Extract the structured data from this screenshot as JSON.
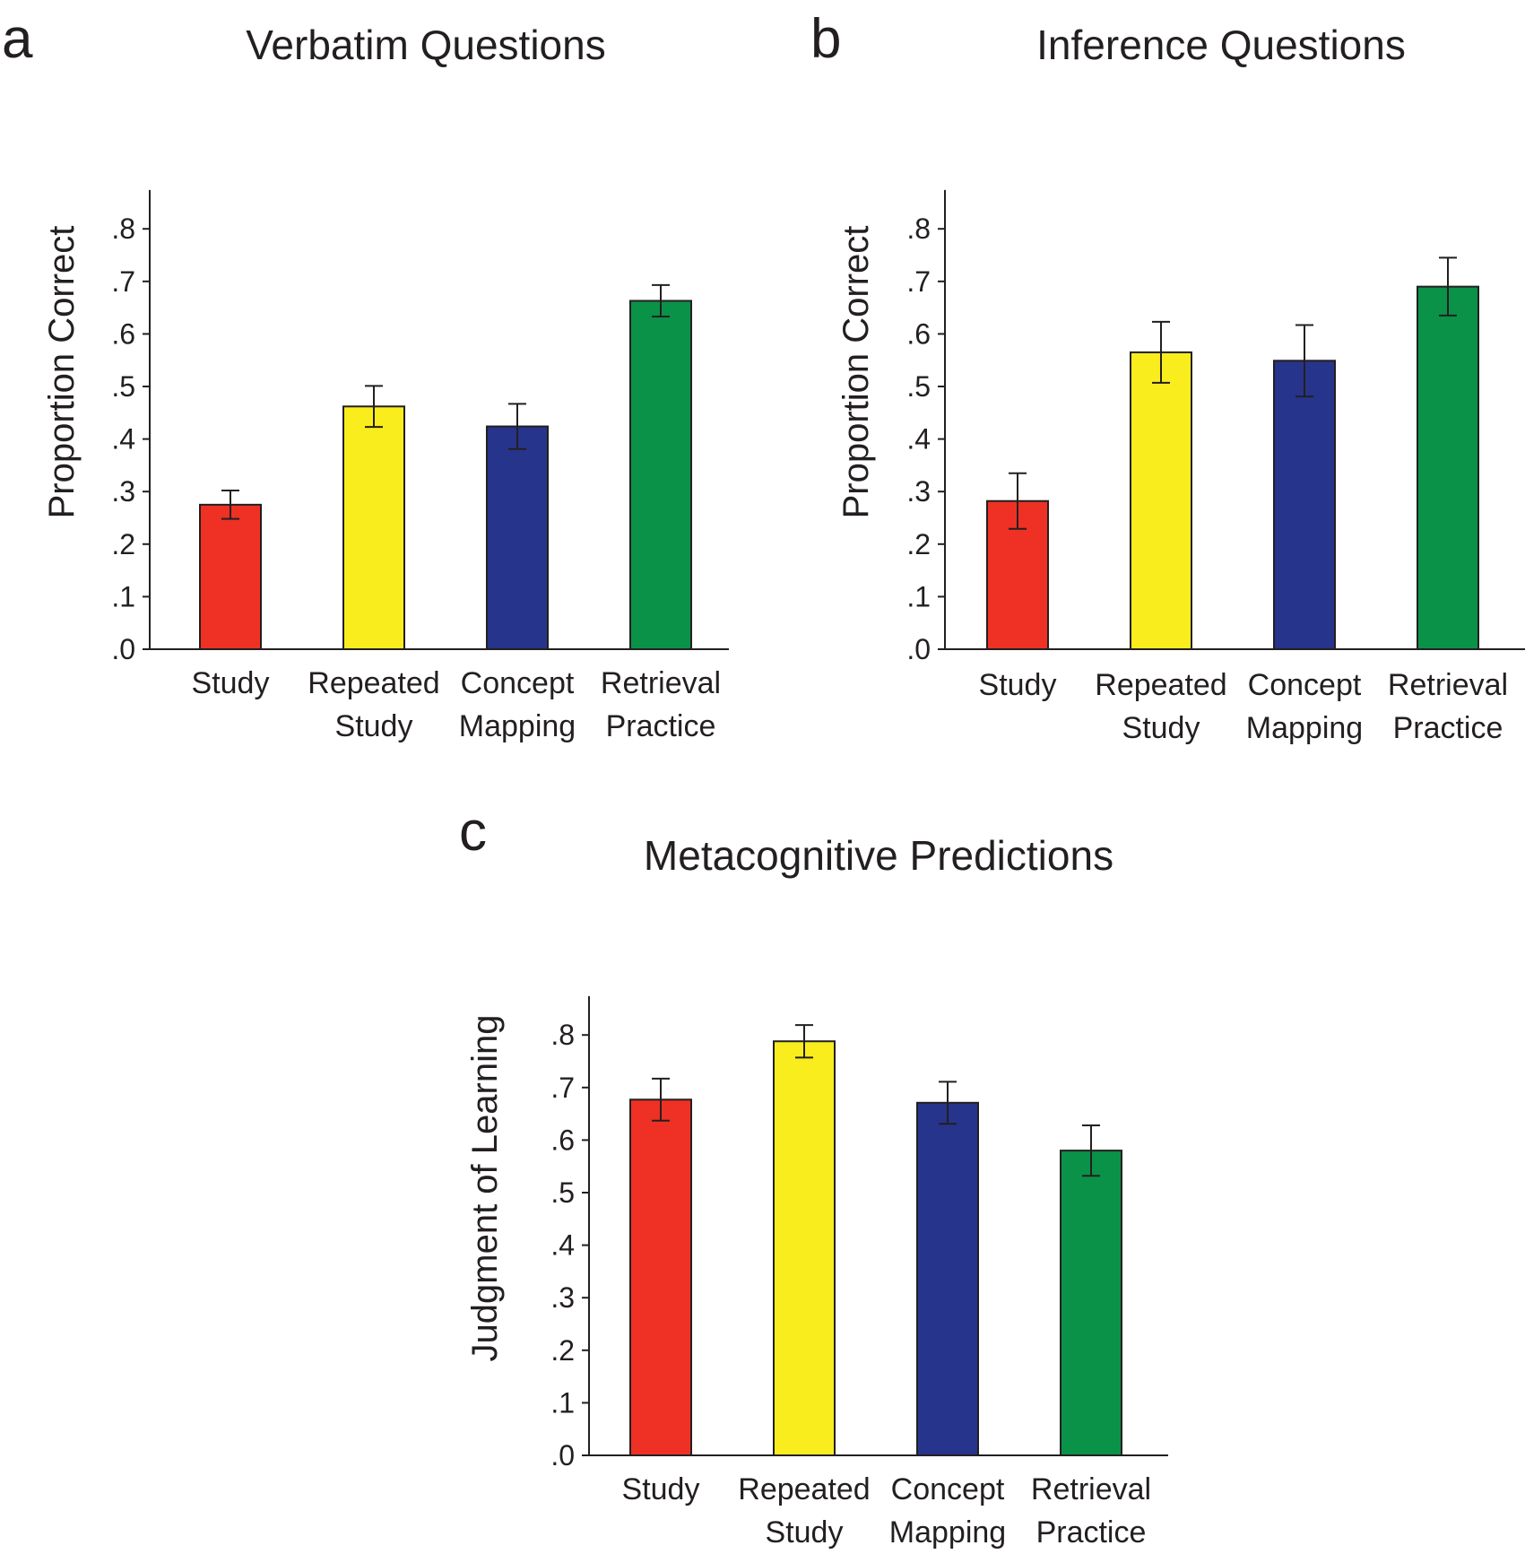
{
  "chart_data": [
    {
      "panel": "a",
      "type": "bar",
      "title": "Verbatim Questions",
      "ylabel": "Proportion Correct",
      "xlabel": "",
      "ylim": [
        0,
        0.85
      ],
      "yticks": [
        ".0",
        ".1",
        ".2",
        ".3",
        ".4",
        ".5",
        ".6",
        ".7",
        ".8"
      ],
      "categories": [
        [
          "Study"
        ],
        [
          "Repeated",
          "Study"
        ],
        [
          "Concept",
          "Mapping"
        ],
        [
          "Retrieval",
          "Practice"
        ]
      ],
      "values": [
        0.275,
        0.462,
        0.424,
        0.663
      ],
      "errors": [
        0.027,
        0.039,
        0.043,
        0.03
      ],
      "colors": [
        "#ee3124",
        "#f9ed1d",
        "#27348b",
        "#0a9248"
      ],
      "grid": false
    },
    {
      "panel": "b",
      "type": "bar",
      "title": "Inference Questions",
      "ylabel": "Proportion Correct",
      "xlabel": "",
      "ylim": [
        0,
        0.85
      ],
      "yticks": [
        ".0",
        ".1",
        ".2",
        ".3",
        ".4",
        ".5",
        ".6",
        ".7",
        ".8"
      ],
      "categories": [
        [
          "Study"
        ],
        [
          "Repeated",
          "Study"
        ],
        [
          "Concept",
          "Mapping"
        ],
        [
          "Retrieval",
          "Practice"
        ]
      ],
      "values": [
        0.282,
        0.565,
        0.549,
        0.69
      ],
      "errors": [
        0.053,
        0.058,
        0.068,
        0.055
      ],
      "colors": [
        "#ee3124",
        "#f9ed1d",
        "#27348b",
        "#0a9248"
      ],
      "grid": false
    },
    {
      "panel": "c",
      "type": "bar",
      "title": "Metacognitive Predictions",
      "ylabel": "Judgment of Learning",
      "xlabel": "",
      "ylim": [
        0,
        0.85
      ],
      "yticks": [
        ".0",
        ".1",
        ".2",
        ".3",
        ".4",
        ".5",
        ".6",
        ".7",
        ".8"
      ],
      "categories": [
        [
          "Study"
        ],
        [
          "Repeated",
          "Study"
        ],
        [
          "Concept",
          "Mapping"
        ],
        [
          "Retrieval",
          "Practice"
        ]
      ],
      "values": [
        0.677,
        0.788,
        0.671,
        0.58
      ],
      "errors": [
        0.04,
        0.031,
        0.04,
        0.048
      ],
      "colors": [
        "#ee3124",
        "#f9ed1d",
        "#27348b",
        "#0a9248"
      ],
      "grid": false
    }
  ]
}
